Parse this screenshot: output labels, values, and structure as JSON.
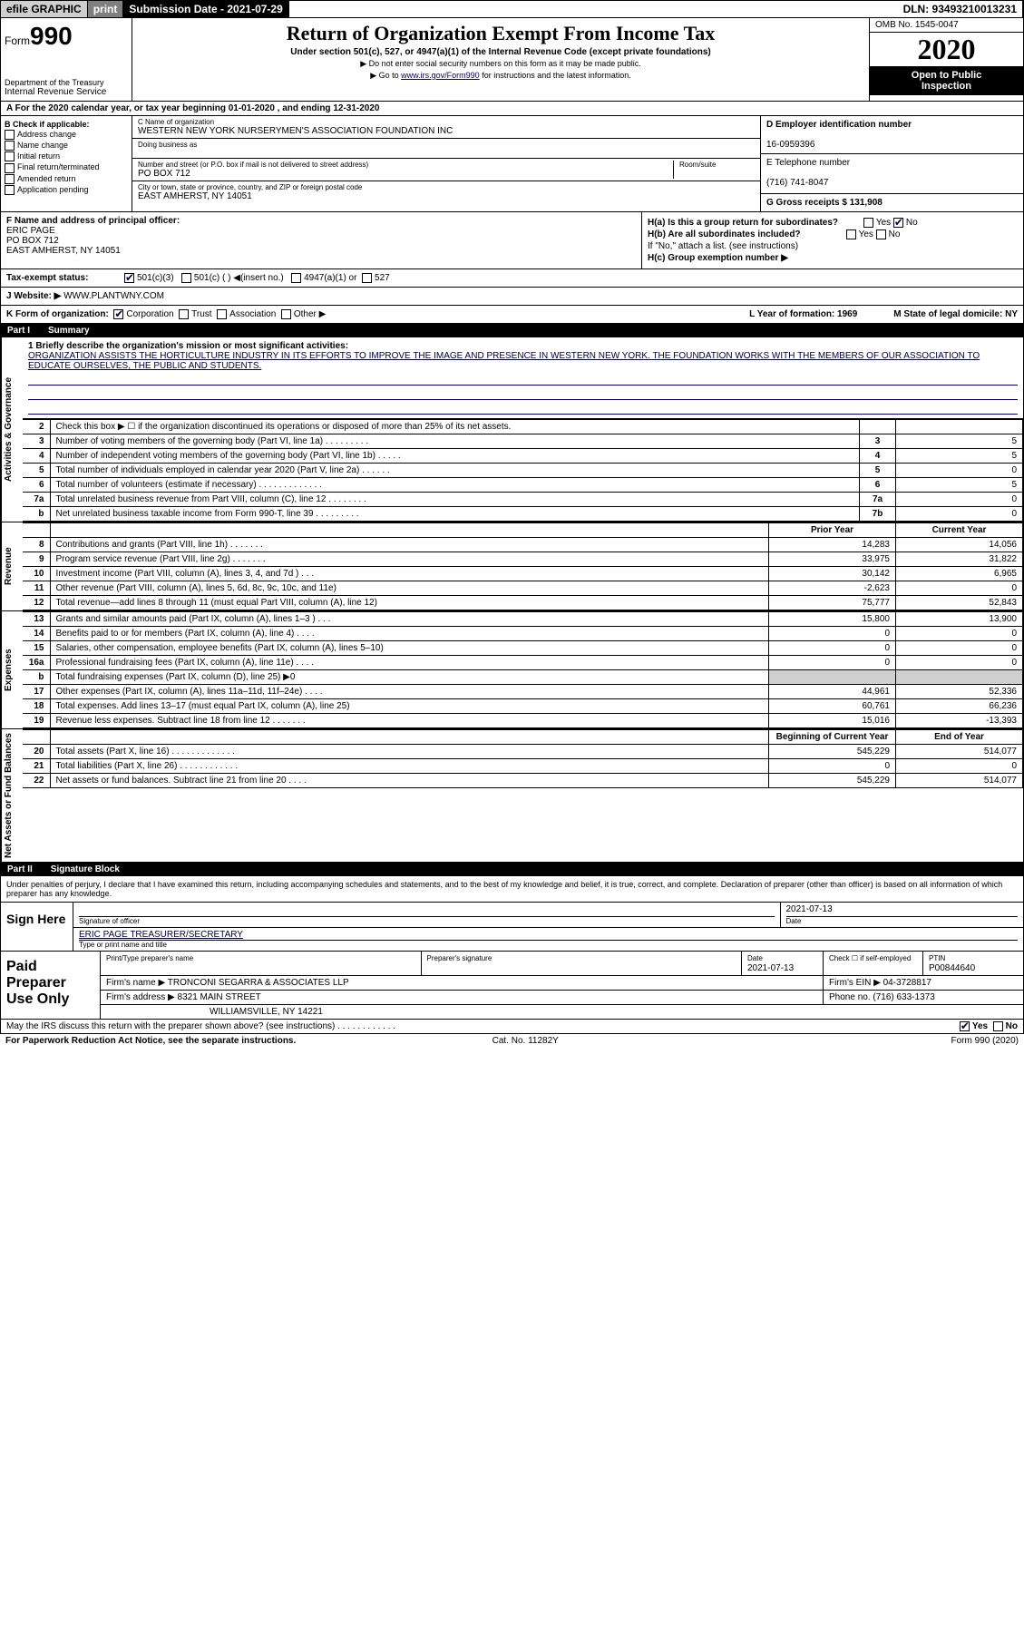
{
  "topbar": {
    "efile": "efile GRAPHIC",
    "print": "print",
    "subdate_label": "Submission Date - 2021-07-29",
    "dln": "DLN: 93493210013231"
  },
  "header": {
    "form_prefix": "Form",
    "form_num": "990",
    "dept": "Department of the Treasury",
    "irs": "Internal Revenue Service",
    "title": "Return of Organization Exempt From Income Tax",
    "subtitle": "Under section 501(c), 527, or 4947(a)(1) of the Internal Revenue Code (except private foundations)",
    "sub2": "▶ Do not enter social security numbers on this form as it may be made public.",
    "sub3_pre": "▶ Go to ",
    "sub3_link": "www.irs.gov/Form990",
    "sub3_post": " for instructions and the latest information.",
    "omb": "OMB No. 1545-0047",
    "year": "2020",
    "open1": "Open to Public",
    "open2": "Inspection"
  },
  "rowA": "A For the 2020 calendar year, or tax year beginning 01-01-2020    , and ending 12-31-2020",
  "colB": {
    "hdr": "B Check if applicable:",
    "items": [
      "Address change",
      "Name change",
      "Initial return",
      "Final return/terminated",
      "Amended return",
      "Application pending"
    ]
  },
  "colC": {
    "name_lbl": "C Name of organization",
    "name": "WESTERN NEW YORK NURSERYMEN'S ASSOCIATION FOUNDATION INC",
    "dba_lbl": "Doing business as",
    "addr_lbl": "Number and street (or P.O. box if mail is not delivered to street address)",
    "addr": "PO BOX 712",
    "room_lbl": "Room/suite",
    "city_lbl": "City or town, state or province, country, and ZIP or foreign postal code",
    "city": "EAST AMHERST, NY  14051"
  },
  "colD": {
    "ein_lbl": "D Employer identification number",
    "ein": "16-0959396",
    "tel_lbl": "E Telephone number",
    "tel": "(716) 741-8047",
    "gross": "G Gross receipts $ 131,908"
  },
  "colF": {
    "lbl": "F  Name and address of principal officer:",
    "name": "ERIC PAGE",
    "addr1": "PO BOX 712",
    "addr2": "EAST AMHERST, NY  14051"
  },
  "colH": {
    "a": "H(a)  Is this a group return for subordinates?",
    "b": "H(b)  Are all subordinates included?",
    "b_note": "If \"No,\" attach a list. (see instructions)",
    "c": "H(c)  Group exemption number ▶",
    "yn_yes": "Yes",
    "yn_no": "No"
  },
  "tax": {
    "lbl": "Tax-exempt status:",
    "o1": "501(c)(3)",
    "o2": "501(c) (  ) ◀(insert no.)",
    "o3": "4947(a)(1) or",
    "o4": "527"
  },
  "web": {
    "lbl": "J   Website: ▶",
    "val": "WWW.PLANTWNY.COM"
  },
  "rowK": {
    "lbl": "K Form of organization:",
    "o1": "Corporation",
    "o2": "Trust",
    "o3": "Association",
    "o4": "Other ▶",
    "yr_lbl": "L Year of formation: 1969",
    "state_lbl": "M State of legal domicile: NY"
  },
  "part1": {
    "num": "Part I",
    "title": "Summary"
  },
  "mission": {
    "lbl": "1 Briefly describe the organization's mission or most significant activities:",
    "text": "ORGANIZATION ASSISTS THE HORTICULTURE INDUSTRY IN ITS EFFORTS TO IMPROVE THE IMAGE AND PRESENCE IN WESTERN NEW YORK. THE FOUNDATION WORKS WITH THE MEMBERS OF OUR ASSOCIATION TO EDUCATE OURSELVES, THE PUBLIC AND STUDENTS."
  },
  "gov_lines": [
    {
      "n": "2",
      "d": "Check this box ▶ ☐  if the organization discontinued its operations or disposed of more than 25% of its net assets.",
      "c": "",
      "v": ""
    },
    {
      "n": "3",
      "d": "Number of voting members of the governing body (Part VI, line 1a)   .   .   .   .   .   .   .   .   .",
      "c": "3",
      "v": "5"
    },
    {
      "n": "4",
      "d": "Number of independent voting members of the governing body (Part VI, line 1b)   .   .   .   .   .",
      "c": "4",
      "v": "5"
    },
    {
      "n": "5",
      "d": "Total number of individuals employed in calendar year 2020 (Part V, line 2a)   .   .   .   .   .   .",
      "c": "5",
      "v": "0"
    },
    {
      "n": "6",
      "d": "Total number of volunteers (estimate if necessary)   .   .   .   .   .   .   .   .   .   .   .   .   .",
      "c": "6",
      "v": "5"
    },
    {
      "n": "7a",
      "d": "Total unrelated business revenue from Part VIII, column (C), line 12   .   .   .   .   .   .   .   .",
      "c": "7a",
      "v": "0"
    },
    {
      "n": "b",
      "d": "Net unrelated business taxable income from Form 990-T, line 39   .   .   .   .   .   .   .   .   .",
      "c": "7b",
      "v": "0"
    }
  ],
  "rev_hdr": {
    "py": "Prior Year",
    "cy": "Current Year"
  },
  "rev_lines": [
    {
      "n": "8",
      "d": "Contributions and grants (Part VIII, line 1h)   .   .   .   .   .   .   .",
      "py": "14,283",
      "cy": "14,056"
    },
    {
      "n": "9",
      "d": "Program service revenue (Part VIII, line 2g)   .   .   .   .   .   .   .",
      "py": "33,975",
      "cy": "31,822"
    },
    {
      "n": "10",
      "d": "Investment income (Part VIII, column (A), lines 3, 4, and 7d )   .   .   .",
      "py": "30,142",
      "cy": "6,965"
    },
    {
      "n": "11",
      "d": "Other revenue (Part VIII, column (A), lines 5, 6d, 8c, 9c, 10c, and 11e)",
      "py": "-2,623",
      "cy": "0"
    },
    {
      "n": "12",
      "d": "Total revenue—add lines 8 through 11 (must equal Part VIII, column (A), line 12)",
      "py": "75,777",
      "cy": "52,843"
    }
  ],
  "exp_lines": [
    {
      "n": "13",
      "d": "Grants and similar amounts paid (Part IX, column (A), lines 1–3 )   .   .   .",
      "py": "15,800",
      "cy": "13,900"
    },
    {
      "n": "14",
      "d": "Benefits paid to or for members (Part IX, column (A), line 4)   .   .   .   .",
      "py": "0",
      "cy": "0"
    },
    {
      "n": "15",
      "d": "Salaries, other compensation, employee benefits (Part IX, column (A), lines 5–10)",
      "py": "0",
      "cy": "0"
    },
    {
      "n": "16a",
      "d": "Professional fundraising fees (Part IX, column (A), line 11e)   .   .   .   .",
      "py": "0",
      "cy": "0"
    },
    {
      "n": "b",
      "d": "Total fundraising expenses (Part IX, column (D), line 25) ▶0",
      "py": "",
      "cy": "",
      "gray": true
    },
    {
      "n": "17",
      "d": "Other expenses (Part IX, column (A), lines 11a–11d, 11f–24e)   .   .   .   .",
      "py": "44,961",
      "cy": "52,336"
    },
    {
      "n": "18",
      "d": "Total expenses. Add lines 13–17 (must equal Part IX, column (A), line 25)",
      "py": "60,761",
      "cy": "66,236"
    },
    {
      "n": "19",
      "d": "Revenue less expenses. Subtract line 18 from line 12   .   .   .   .   .   .   .",
      "py": "15,016",
      "cy": "-13,393"
    }
  ],
  "na_hdr": {
    "py": "Beginning of Current Year",
    "cy": "End of Year"
  },
  "na_lines": [
    {
      "n": "20",
      "d": "Total assets (Part X, line 16)   .   .   .   .   .   .   .   .   .   .   .   .   .",
      "py": "545,229",
      "cy": "514,077"
    },
    {
      "n": "21",
      "d": "Total liabilities (Part X, line 26)   .   .   .   .   .   .   .   .   .   .   .   .",
      "py": "0",
      "cy": "0"
    },
    {
      "n": "22",
      "d": "Net assets or fund balances. Subtract line 21 from line 20   .   .   .   .",
      "py": "545,229",
      "cy": "514,077"
    }
  ],
  "part2": {
    "num": "Part II",
    "title": "Signature Block"
  },
  "sig_text": "Under penalties of perjury, I declare that I have examined this return, including accompanying schedules and statements, and to the best of my knowledge and belief, it is true, correct, and complete. Declaration of preparer (other than officer) is based on all information of which preparer has any knowledge.",
  "sig": {
    "here": "Sign Here",
    "off_lbl": "Signature of officer",
    "date": "2021-07-13",
    "date_lbl": "Date",
    "name": "ERIC PAGE TREASURER/SECRETARY",
    "name_lbl": "Type or print name and title"
  },
  "prep": {
    "left": "Paid Preparer Use Only",
    "h1": "Print/Type preparer's name",
    "h2": "Preparer's signature",
    "h3": "Date",
    "h4": "Check ☐ if self-employed",
    "h5": "PTIN",
    "date": "2021-07-13",
    "ptin": "P00844640",
    "firm_lbl": "Firm's name    ▶",
    "firm": "TRONCONI SEGARRA & ASSOCIATES LLP",
    "ein_lbl": "Firm's EIN ▶",
    "ein": "04-3728817",
    "addr_lbl": "Firm's address ▶",
    "addr1": "8321 MAIN STREET",
    "addr2": "WILLIAMSVILLE, NY  14221",
    "phone_lbl": "Phone no.",
    "phone": "(716) 633-1373"
  },
  "footer": {
    "q": "May the IRS discuss this return with the preparer shown above? (see instructions)   .   .   .   .   .   .   .   .   .   .   .   .",
    "yes": "Yes",
    "no": "No"
  },
  "last": {
    "l": "For Paperwork Reduction Act Notice, see the separate instructions.",
    "c": "Cat. No. 11282Y",
    "r": "Form 990 (2020)"
  },
  "side_labels": {
    "gov": "Activities & Governance",
    "rev": "Revenue",
    "exp": "Expenses",
    "na": "Net Assets or Fund Balances"
  }
}
